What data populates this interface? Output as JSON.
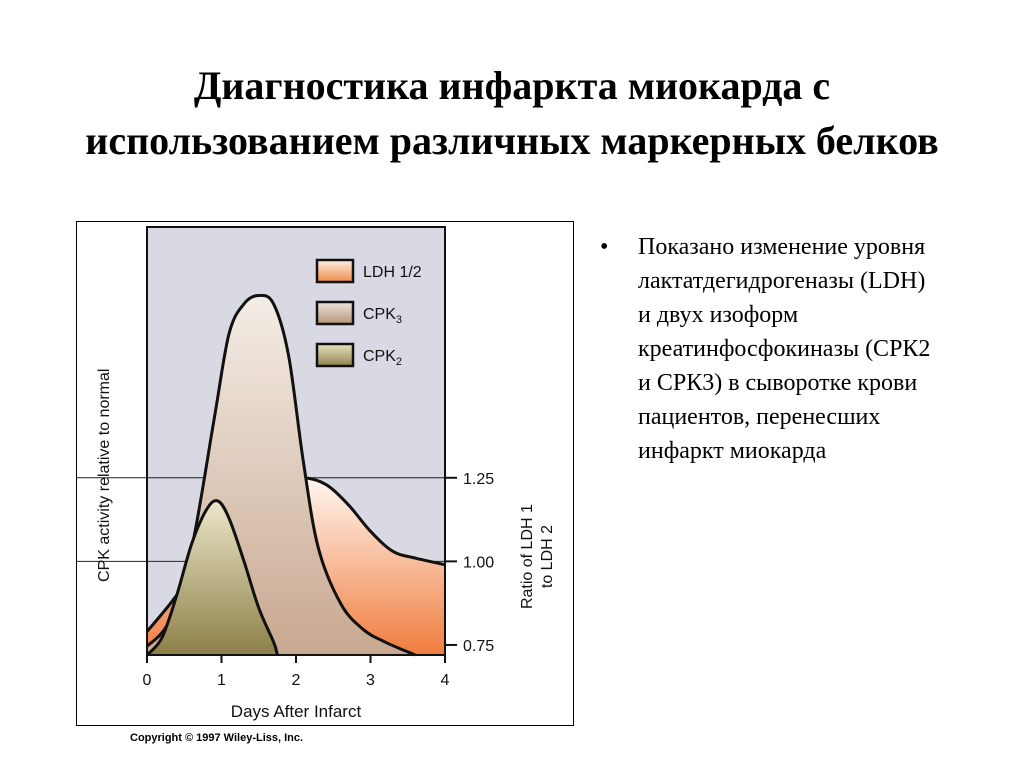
{
  "slide": {
    "title": "Диагностика инфаркта миокарда с использованием различных маркерных белков",
    "bullet_symbol": "•",
    "bullet_text": "Показано изменение уровня лактатдегидрогеназы (LDH) и двух изоформ креатинфосфокиназы (СРК2 и СРК3) в сыворотке крови пациентов, перенесших инфаркт миокарда",
    "copyright": "Copyright © 1997 Wiley-Liss, Inc."
  },
  "chart_data": {
    "type": "area",
    "xlabel": "Days After Infarct",
    "ylabel_left": "CPK activity relative to normal",
    "ylabel_right": "Ratio of LDH 1 to LDH 2",
    "x_ticks": [
      "0",
      "1",
      "2",
      "3",
      "4"
    ],
    "xlim": [
      0,
      4
    ],
    "right_axis_ticks": [
      {
        "label": "1.25",
        "value": 1.25
      },
      {
        "label": "1.00",
        "value": 1.0
      },
      {
        "label": "0.75",
        "value": 0.75
      }
    ],
    "right_ylim": [
      0.72,
      2.0
    ],
    "series": [
      {
        "name": "LDH 1/2",
        "axis": "right",
        "x": [
          0,
          0.3,
          0.6,
          0.9,
          1.2,
          1.5,
          1.8,
          2.1,
          2.4,
          2.7,
          3.0,
          3.3,
          3.6,
          4.0
        ],
        "values": [
          0.79,
          0.87,
          0.96,
          1.05,
          1.14,
          1.21,
          1.24,
          1.25,
          1.23,
          1.17,
          1.09,
          1.03,
          1.01,
          0.99
        ],
        "colors": [
          "#fff6f0",
          "#f07d3e"
        ]
      },
      {
        "name": "CPK3",
        "axis": "left",
        "x": [
          0,
          0.3,
          0.6,
          0.9,
          1.1,
          1.3,
          1.5,
          1.7,
          1.9,
          2.1,
          2.3,
          2.6,
          2.9,
          3.2,
          3.6
        ],
        "values": [
          2,
          8,
          25,
          55,
          75,
          82,
          84,
          82,
          70,
          45,
          25,
          12,
          6,
          3,
          0
        ],
        "colors": [
          "#f4ede6",
          "#c8a890"
        ]
      },
      {
        "name": "CPK2",
        "axis": "left",
        "x": [
          0,
          0.2,
          0.4,
          0.6,
          0.8,
          0.95,
          1.1,
          1.3,
          1.5,
          1.7,
          1.75
        ],
        "values": [
          0,
          4,
          14,
          26,
          34,
          36,
          32,
          22,
          11,
          3,
          0
        ],
        "colors": [
          "#ece7ca",
          "#8c7f48"
        ]
      }
    ],
    "legend": [
      {
        "name": "LDH 1/2",
        "label_main": "LDH 1/2",
        "label_sub": "",
        "swatch_colors": [
          "#fff1e4",
          "#f08a4a"
        ]
      },
      {
        "name": "CPK3",
        "label_main": "CPK",
        "label_sub": "3",
        "swatch_colors": [
          "#ece4dc",
          "#b8957a"
        ]
      },
      {
        "name": "CPK2",
        "label_main": "CPK",
        "label_sub": "2",
        "swatch_colors": [
          "#e8e4bf",
          "#8d8450"
        ]
      }
    ],
    "legend_position": "top-right",
    "left_ylim": [
      0,
      100
    ],
    "plot_background": "#d9d9e3",
    "reference_lines_at_right_values": [
      1.25,
      1.0
    ]
  }
}
